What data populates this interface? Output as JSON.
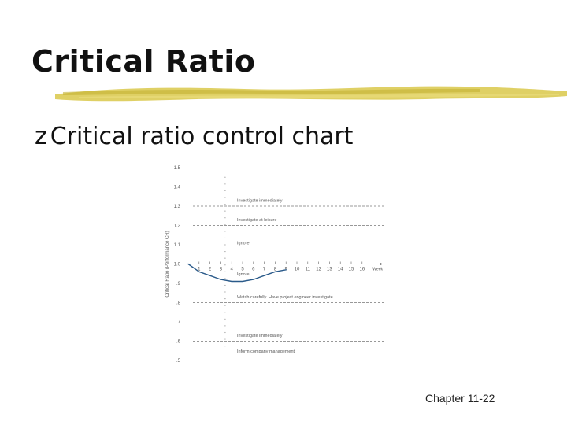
{
  "slide": {
    "title": "Critical Ratio",
    "bullet_glyph": "z",
    "bullet_text": "Critical ratio control chart",
    "footer": "Chapter 11-22"
  },
  "colors": {
    "text": "#111111",
    "accent_brush": "#d9c84a",
    "curve": "#2a5a8a",
    "limit_lines": "#777777"
  },
  "chart_data": {
    "type": "line",
    "ylabel": "Critical Ratio (Performance CR)",
    "xlabel": "Week",
    "ylim": [
      0.5,
      1.5
    ],
    "y_ticks": [
      "1.5",
      "1.4",
      "1.3",
      "1.2",
      "1.1",
      "1.0",
      ".9",
      ".8",
      ".7",
      ".6",
      ".5"
    ],
    "y_tick_values": [
      1.5,
      1.4,
      1.3,
      1.2,
      1.1,
      1.0,
      0.9,
      0.8,
      0.7,
      0.6,
      0.5
    ],
    "x_ticks": [
      "1",
      "2",
      "3",
      "4",
      "5",
      "6",
      "7",
      "8",
      "9",
      "10",
      "11",
      "12",
      "13",
      "14",
      "15",
      "16"
    ],
    "limit_lines": [
      1.3,
      1.2,
      0.8,
      0.6
    ],
    "zone_labels": [
      {
        "text": "Investigate immediately",
        "y": 1.33
      },
      {
        "text": "Investigate at leisure",
        "y": 1.23
      },
      {
        "text": "Ignore",
        "y": 1.11
      },
      {
        "text": "Ignore",
        "y": 0.95
      },
      {
        "text": "Watch carefully. Have project engineer investigate",
        "y": 0.83
      },
      {
        "text": "Investigate immediately",
        "y": 0.63
      },
      {
        "text": "Inform company management",
        "y": 0.55
      }
    ],
    "series": [
      {
        "x": [
          0,
          1,
          2,
          3,
          4,
          5,
          6,
          7,
          8,
          9
        ],
        "values": [
          1.0,
          0.96,
          0.94,
          0.92,
          0.91,
          0.91,
          0.92,
          0.94,
          0.96,
          0.97
        ]
      }
    ]
  }
}
